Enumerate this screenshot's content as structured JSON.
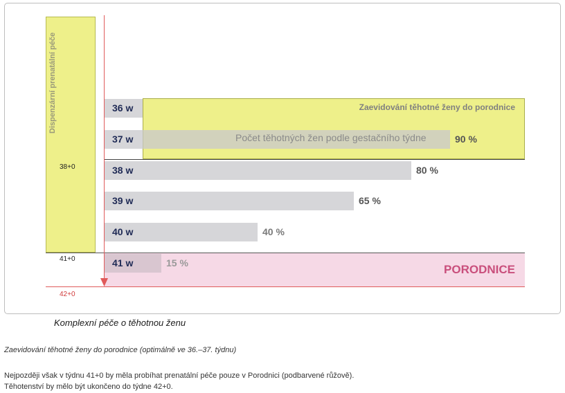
{
  "diagram": {
    "vertical_label": "Dispenzární prenatální péče",
    "week_markers": {
      "w38": "38+0",
      "w41": "41+0",
      "w42": "42+0"
    },
    "band_title": "Zaevidování těhotné ženy do porodnice",
    "center_note": "Počet těhotných žen podle gestačního týdne",
    "porodnice_label": "PORODNICE",
    "colors": {
      "yellow": "#eef08a",
      "pink": "#f6d9e6",
      "bar": "#d6d6d9",
      "red_line": "#e05a5a",
      "week_label": "#1f2a55",
      "porodnice": "#c94f7c"
    }
  },
  "chart_data": {
    "type": "bar",
    "categories": [
      "36 w",
      "37 w",
      "38 w",
      "39 w",
      "40 w",
      "41 w"
    ],
    "values": [
      null,
      90,
      80,
      65,
      40,
      15
    ],
    "value_labels": [
      "",
      "90 %",
      "80 %",
      "65 %",
      "40 %",
      "15 %"
    ],
    "title": "Počet těhotných žen podle gestačního týdne",
    "xlabel": "",
    "ylabel": "",
    "orientation": "horizontal",
    "ylim": [
      0,
      100
    ]
  },
  "text": {
    "caption": "Komplexní péče o těhotnou ženu",
    "note_italic": "Zaevidování těhotné ženy do porodnice (optimálně ve 36.–37. týdnu)",
    "line1": "Nejpozději však v týdnu 41+0 by měla probíhat prenatální péče pouze v Porodnici (podbarvené růžově).",
    "line2": "Těhotenství by mělo být ukončeno do týdne 42+0."
  }
}
